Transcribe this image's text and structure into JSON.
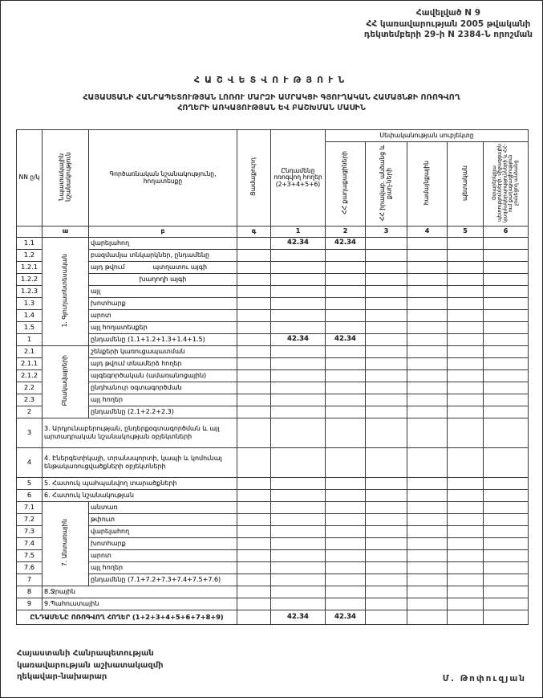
{
  "appendix": {
    "line1": "Հավելված N 9",
    "line2": "ՀՀ կառավարության 2005 թվականի",
    "line3": "դեկտեմբերի 29-ի N 2384-Ն որոշման"
  },
  "title": {
    "line1": "ՀԱՇՎԵՏՎՈՒԹՅՈՒՆ",
    "line2": "ՀԱՅԱՍՏԱՆԻ ՀԱՆՐԱՊԵՏՈՒԹՅԱՆ ԼՈՌՈՒ ՄԱՐԶԻ ԱՄՐԱԿՑԻ ԳՅՈՒՂԱԿԱՆ ՀԱՄԱՅՆՔԻ ՈՌՈԳՎՈՂ",
    "line3": "ՀՈՂԵՐԻ ԱՌԿԱՅՈՒԹՅԱՆ ԵՎ ԲԱՇԽՄԱՆ ՄԱՍԻՆ"
  },
  "table": {
    "headers": {
      "nn": "NN ը/կ",
      "purpose": "Նպատակային նշանակություն",
      "functional": "Գործառնական նշանակությունը, հողատեսքը",
      "drained": "Ցամաքուրդ",
      "total_irrigated": "Ընդամենը ոռոգվող հողեր (2+3+4+5+6)",
      "ownership_band": "Սեփականության սուբյեկտը",
      "owner_citizens": "ՀՀ քաղաքացիների",
      "owner_legal": "ՀՀ իրավաբ. անձանց և քաղ-ների",
      "owner_community": "համայնքային",
      "owner_state": "պետական",
      "owner_foreign": "Օտարերկրյա պետությունների, միջազգային կազմակերպությունների և ՀՀ-ում քաղաքացիություն չունեցող անձանց"
    },
    "letters": [
      "",
      "ա",
      "բ",
      "գ",
      "1",
      "2",
      "3",
      "4",
      "5",
      "6"
    ],
    "rows": [
      {
        "nn": "1.1",
        "group": {
          "label": "1. Գյուղատնտեսական",
          "span": 9
        },
        "label": "վարելահող",
        "v": [
          "",
          "42.34",
          "42.34",
          "",
          "",
          "",
          ""
        ]
      },
      {
        "nn": "1.2",
        "label": "բազմամյա տնկարկներ, ընդամենը"
      },
      {
        "nn": "1.2.1",
        "prefix": "այդ թվում",
        "label": "պտղատու այգի"
      },
      {
        "nn": "1.2.2",
        "label": "խաղողի այգի",
        "center": true
      },
      {
        "nn": "1.2.3",
        "label": "այլ"
      },
      {
        "nn": "1.3",
        "label": "խոտհարք"
      },
      {
        "nn": "1.4",
        "label": "արոտ"
      },
      {
        "nn": "1.5",
        "label": "այլ հողատեսքեր"
      },
      {
        "nn": "1",
        "label": "ընդամենը (1.1+1.2+1.3+1.4+1.5)",
        "v": [
          "",
          "42.34",
          "42.34",
          "",
          "",
          "",
          ""
        ]
      },
      {
        "nn": "2.1",
        "group": {
          "label": "Բնակավայրերի",
          "span": 6
        },
        "label": "շենքերի կառուցապատման"
      },
      {
        "nn": "2.1.1",
        "label": "այդ թվում տնամերձ հողեր"
      },
      {
        "nn": "2.1.2",
        "label": "այգեգործական (ամառանոցային)"
      },
      {
        "nn": "2.2",
        "label": "ընդհանուր օգտագործման"
      },
      {
        "nn": "2.3",
        "label": "այլ հողեր"
      },
      {
        "nn": "2",
        "label": "ընդամենը (2.1+2.2+2.3)"
      },
      {
        "nn": "3",
        "span": 2,
        "tall": true,
        "label": "3. Արդյունաբերության, ընդերքօգտագործման և այլ արտադրական նշանակության օբյեկտների"
      },
      {
        "nn": "4",
        "span": 2,
        "tall": true,
        "label": "4. Էներգետիկայի, տրանսպորտի, կապի և կոմունալ ենթակառուցվածքների օբյեկտների"
      },
      {
        "nn": "5",
        "span": 2,
        "label": "5. Հատուկ պահպանվող տարածքների"
      },
      {
        "nn": "6",
        "span": 2,
        "label": "6. Հատուկ նշանակության"
      },
      {
        "nn": "7.1",
        "group": {
          "label": "7. Անտառային",
          "span": 7
        },
        "label": "անտառ"
      },
      {
        "nn": "7.2",
        "label": "թփուտ"
      },
      {
        "nn": "7.3",
        "label": "վարելահող"
      },
      {
        "nn": "7.4",
        "label": "խոտհարք"
      },
      {
        "nn": "7.5",
        "label": "արոտ"
      },
      {
        "nn": "7.6",
        "label": "այլ հողեր"
      },
      {
        "nn": "7",
        "label": "ընդամենը (7.1+7.2+7.3+7.4+7.5+7.6)"
      },
      {
        "nn": "8",
        "span": 2,
        "label": "8.Ջրային"
      },
      {
        "nn": "9",
        "span": 2,
        "label": "9.Պահուստային"
      },
      {
        "total": true,
        "span": 3,
        "label": "ԸՆԴԱՄԵՆԸ ՈՌՈԳՎՈՂ ՀՈՂԵՐ (1+2+3+4+5+6+7+8+9)",
        "v": [
          "",
          "42.34",
          "42.34",
          "",
          "",
          "",
          ""
        ]
      }
    ]
  },
  "footer": {
    "line1": "Հայաստանի Հանրապետության",
    "line2": "կառավարության աշխատակազմի",
    "line3": "ղեկավար-նախարար",
    "signature": "Մ. Թոփուզյան"
  }
}
